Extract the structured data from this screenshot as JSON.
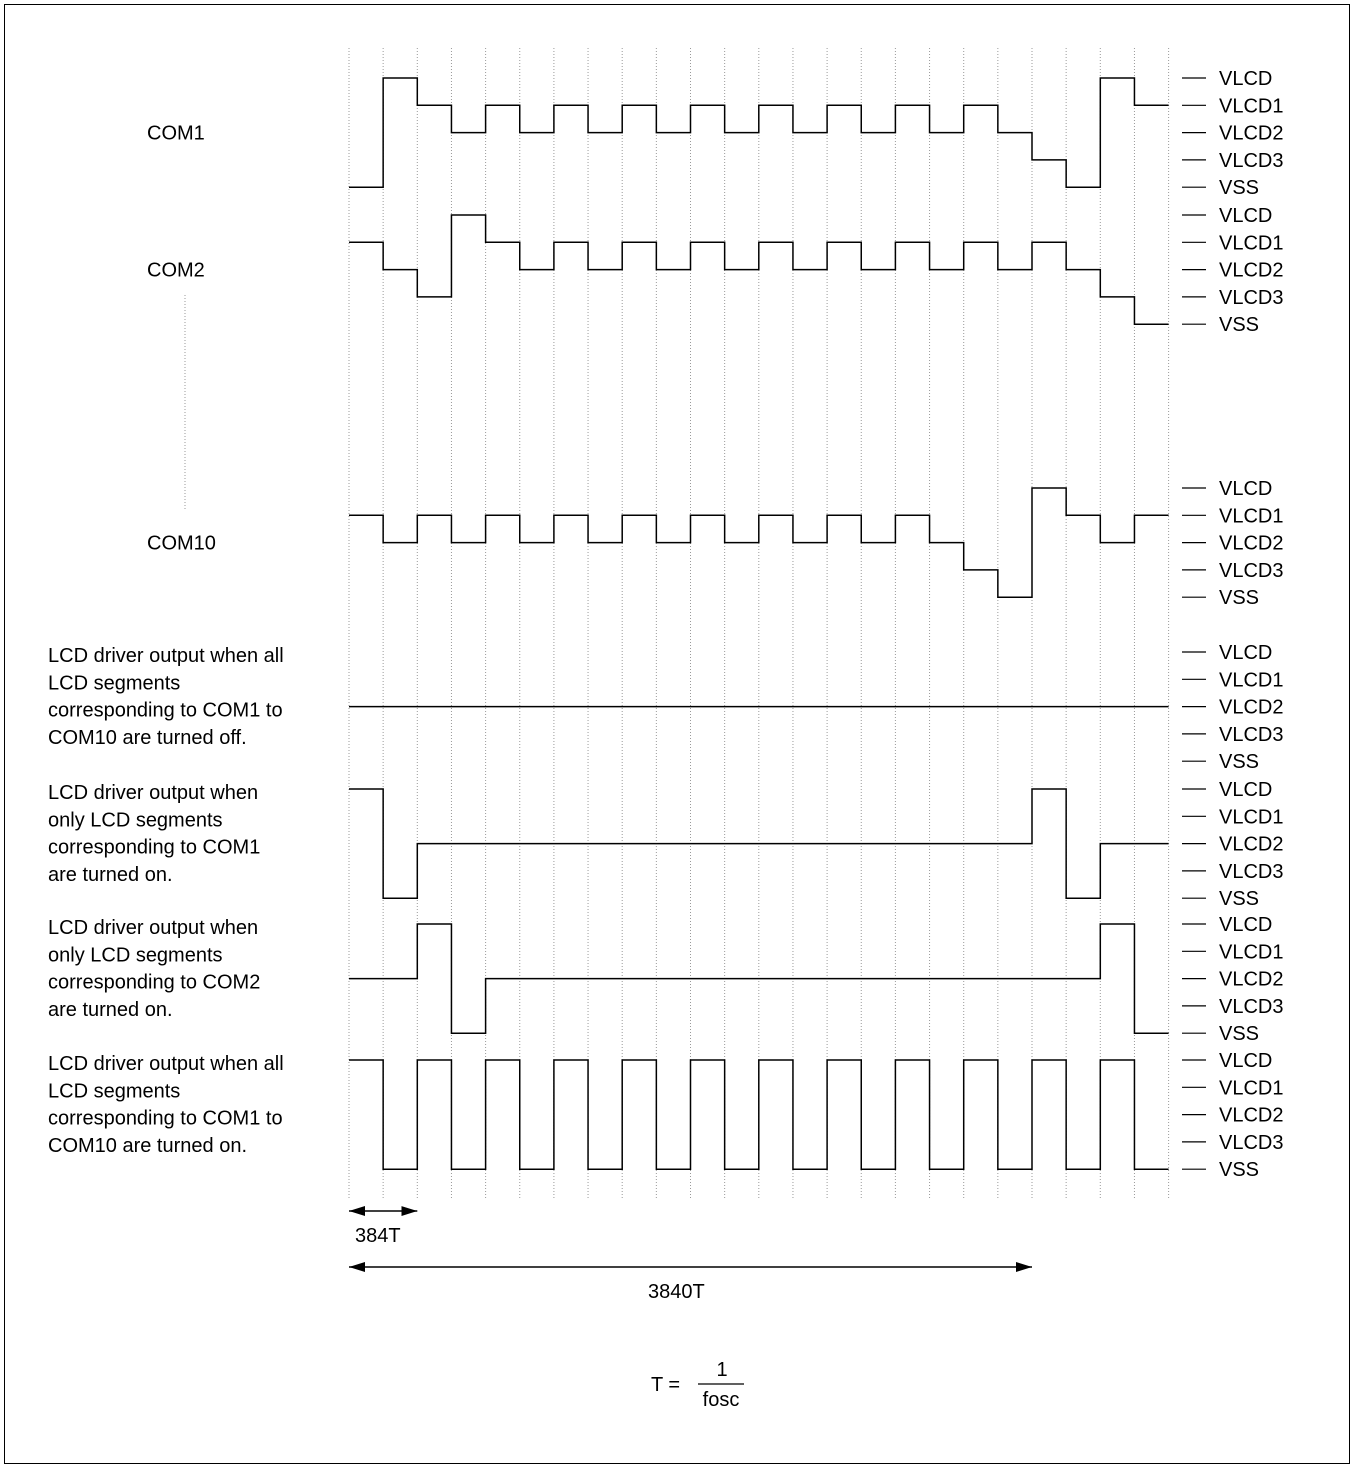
{
  "level_names": [
    "VLCD",
    "VLCD1",
    "VLCD2",
    "VLCD3",
    "VSS"
  ],
  "rows": [
    {
      "id": "com1",
      "label": [
        "COM1"
      ],
      "levels": [
        4,
        0,
        1,
        2,
        1,
        2,
        1,
        2,
        1,
        2,
        1,
        2,
        1,
        2,
        1,
        2,
        1,
        2,
        1,
        2,
        3,
        4,
        0,
        1,
        2
      ]
    },
    {
      "id": "com2",
      "label": [
        "COM2"
      ],
      "levels": [
        1,
        2,
        3,
        0,
        1,
        2,
        1,
        2,
        1,
        2,
        1,
        2,
        1,
        2,
        1,
        2,
        1,
        2,
        1,
        2,
        1,
        2,
        3,
        4,
        0
      ]
    },
    {
      "id": "com10",
      "label": [
        "COM10"
      ],
      "levels": [
        1,
        2,
        1,
        2,
        1,
        2,
        1,
        2,
        1,
        2,
        1,
        2,
        1,
        2,
        1,
        2,
        1,
        2,
        3,
        4,
        0,
        1,
        2,
        1,
        2
      ]
    },
    {
      "id": "seg-all-off",
      "label": [
        "LCD driver output when all",
        "LCD segments",
        "corresponding to COM1 to",
        "COM10 are turned off."
      ],
      "levels": [
        2,
        2,
        2,
        2,
        2,
        2,
        2,
        2,
        2,
        2,
        2,
        2,
        2,
        2,
        2,
        2,
        2,
        2,
        2,
        2,
        2,
        2,
        2,
        2,
        2
      ]
    },
    {
      "id": "seg-com1-on",
      "label": [
        "LCD driver output when",
        "only LCD segments",
        "corresponding to COM1",
        "are turned on."
      ],
      "levels": [
        0,
        4,
        2,
        2,
        2,
        2,
        2,
        2,
        2,
        2,
        2,
        2,
        2,
        2,
        2,
        2,
        2,
        2,
        2,
        2,
        0,
        4,
        2,
        2,
        2
      ]
    },
    {
      "id": "seg-com2-on",
      "label": [
        "LCD driver output when",
        "only LCD segments",
        "corresponding to COM2",
        "are turned on."
      ],
      "levels": [
        2,
        2,
        0,
        4,
        2,
        2,
        2,
        2,
        2,
        2,
        2,
        2,
        2,
        2,
        2,
        2,
        2,
        2,
        2,
        2,
        2,
        2,
        0,
        4,
        4
      ]
    },
    {
      "id": "seg-all-on",
      "label": [
        "LCD driver output when all",
        "LCD segments",
        "corresponding to COM1 to",
        "COM10 are turned on."
      ],
      "levels": [
        0,
        4,
        0,
        4,
        0,
        4,
        0,
        4,
        0,
        4,
        0,
        4,
        0,
        4,
        0,
        4,
        0,
        4,
        0,
        4,
        0,
        4,
        0,
        4,
        4
      ]
    }
  ],
  "timing": {
    "short_label": "384T",
    "long_label": "3840T"
  },
  "formula": {
    "lhs": "T =",
    "numerator": "1",
    "denominator": "fosc"
  }
}
